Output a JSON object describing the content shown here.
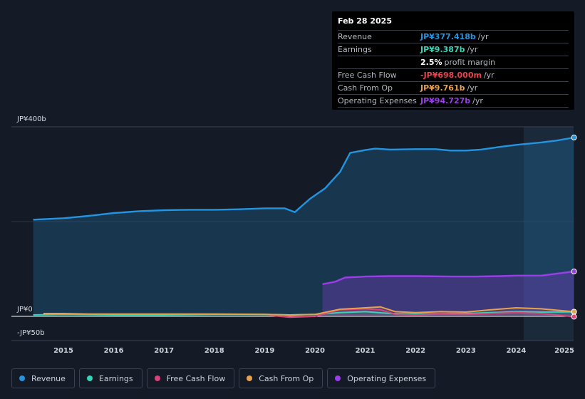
{
  "chart_data": {
    "type": "area",
    "ytick_labels": [
      {
        "label": "JP¥400b",
        "value": 400
      },
      {
        "label": "JP¥0",
        "value": 0
      },
      {
        "label": "-JP¥50b",
        "value": -50
      }
    ],
    "ylim": [
      -50,
      400
    ],
    "xlim": [
      2014.0,
      2025.2
    ],
    "x_ticks": [
      2015,
      2016,
      2017,
      2018,
      2019,
      2020,
      2021,
      2022,
      2023,
      2024,
      2025
    ],
    "forecast_region_start": 2024.15,
    "series": [
      {
        "name": "Revenue",
        "color": "#2394df",
        "points": [
          [
            2014.4,
            204
          ],
          [
            2015.0,
            207
          ],
          [
            2015.5,
            212
          ],
          [
            2016.0,
            218
          ],
          [
            2016.5,
            222
          ],
          [
            2017.0,
            224
          ],
          [
            2017.5,
            225
          ],
          [
            2018.0,
            225
          ],
          [
            2018.5,
            226
          ],
          [
            2019.0,
            228
          ],
          [
            2019.4,
            228
          ],
          [
            2019.6,
            220
          ],
          [
            2019.9,
            248
          ],
          [
            2020.2,
            270
          ],
          [
            2020.5,
            305
          ],
          [
            2020.7,
            345
          ],
          [
            2021.0,
            351
          ],
          [
            2021.2,
            354
          ],
          [
            2021.5,
            352
          ],
          [
            2022.0,
            353
          ],
          [
            2022.4,
            353
          ],
          [
            2022.7,
            350
          ],
          [
            2023.0,
            350
          ],
          [
            2023.3,
            352
          ],
          [
            2023.7,
            358
          ],
          [
            2024.0,
            362
          ],
          [
            2024.5,
            367
          ],
          [
            2024.8,
            371
          ],
          [
            2025.15,
            377.418
          ]
        ]
      },
      {
        "name": "Operating Expenses",
        "color": "#9b3de8",
        "points": [
          [
            2020.15,
            68
          ],
          [
            2020.4,
            73
          ],
          [
            2020.6,
            82
          ],
          [
            2021.0,
            84
          ],
          [
            2021.5,
            85
          ],
          [
            2022.0,
            85
          ],
          [
            2022.7,
            84
          ],
          [
            2023.2,
            84
          ],
          [
            2023.7,
            85
          ],
          [
            2024.0,
            86
          ],
          [
            2024.5,
            86
          ],
          [
            2025.15,
            94.727
          ]
        ]
      },
      {
        "name": "Earnings",
        "color": "#34d5b8",
        "points": [
          [
            2014.4,
            3
          ],
          [
            2015.0,
            4
          ],
          [
            2016.0,
            3
          ],
          [
            2017.0,
            3
          ],
          [
            2018.0,
            4
          ],
          [
            2019.0,
            4
          ],
          [
            2019.5,
            3
          ],
          [
            2020.0,
            4
          ],
          [
            2020.5,
            8
          ],
          [
            2021.0,
            10
          ],
          [
            2021.5,
            6
          ],
          [
            2022.0,
            5
          ],
          [
            2023.0,
            6
          ],
          [
            2023.5,
            8
          ],
          [
            2024.0,
            10
          ],
          [
            2024.5,
            9
          ],
          [
            2025.15,
            9.387
          ]
        ]
      },
      {
        "name": "Free Cash Flow",
        "color": "#d9437b",
        "points": [
          [
            2019.1,
            2
          ],
          [
            2019.5,
            -2
          ],
          [
            2020.0,
            0
          ],
          [
            2020.5,
            14
          ],
          [
            2021.0,
            16
          ],
          [
            2021.3,
            14
          ],
          [
            2021.6,
            4
          ],
          [
            2022.0,
            3
          ],
          [
            2022.5,
            5
          ],
          [
            2023.0,
            4
          ],
          [
            2023.5,
            6
          ],
          [
            2024.0,
            8
          ],
          [
            2024.5,
            6
          ],
          [
            2025.15,
            -0.698
          ]
        ]
      },
      {
        "name": "Cash From Op",
        "color": "#e8a14c",
        "points": [
          [
            2014.6,
            6
          ],
          [
            2015.0,
            6
          ],
          [
            2015.5,
            5
          ],
          [
            2016.0,
            5
          ],
          [
            2017.0,
            5
          ],
          [
            2018.0,
            5
          ],
          [
            2019.0,
            4
          ],
          [
            2019.5,
            3
          ],
          [
            2020.0,
            4
          ],
          [
            2020.5,
            15
          ],
          [
            2021.0,
            18
          ],
          [
            2021.3,
            20
          ],
          [
            2021.6,
            10
          ],
          [
            2022.0,
            8
          ],
          [
            2022.5,
            10
          ],
          [
            2023.0,
            9
          ],
          [
            2023.5,
            14
          ],
          [
            2024.0,
            18
          ],
          [
            2024.5,
            16
          ],
          [
            2025.15,
            9.761
          ]
        ]
      }
    ]
  },
  "tooltip": {
    "date": "Feb 28 2025",
    "rows": [
      {
        "label": "Revenue",
        "value": "JP¥377.418b",
        "unit": "/yr",
        "color": "#2394df"
      },
      {
        "label": "Earnings",
        "value": "JP¥9.387b",
        "unit": "/yr",
        "color": "#34d5b8"
      },
      {
        "label": "",
        "value": "2.5%",
        "unit": "profit margin",
        "color": "#ffffff"
      },
      {
        "label": "Free Cash Flow",
        "value": "-JP¥698.000m",
        "unit": "/yr",
        "color": "#e8434f"
      },
      {
        "label": "Cash From Op",
        "value": "JP¥9.761b",
        "unit": "/yr",
        "color": "#e8a14c"
      },
      {
        "label": "Operating Expenses",
        "value": "JP¥94.727b",
        "unit": "/yr",
        "color": "#9b3de8"
      }
    ]
  },
  "legend": [
    {
      "label": "Revenue",
      "color": "#2394df"
    },
    {
      "label": "Earnings",
      "color": "#34d5b8"
    },
    {
      "label": "Free Cash Flow",
      "color": "#d9437b"
    },
    {
      "label": "Cash From Op",
      "color": "#e8a14c"
    },
    {
      "label": "Operating Expenses",
      "color": "#9b3de8"
    }
  ]
}
